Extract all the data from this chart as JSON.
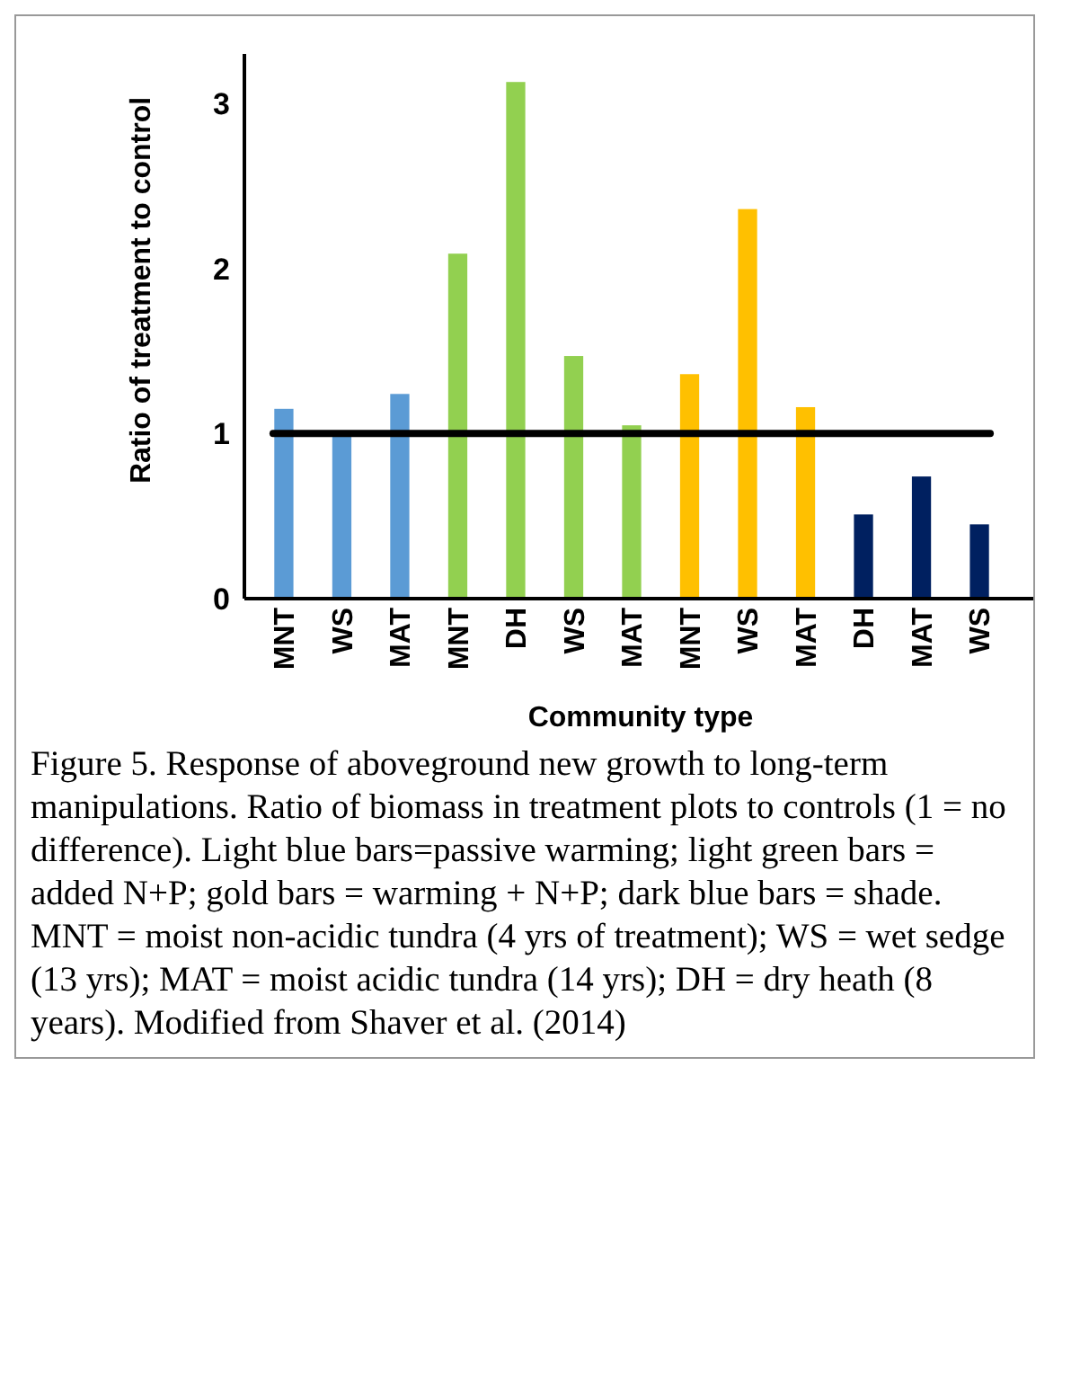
{
  "chart_data": {
    "type": "bar",
    "xlabel": "Community type",
    "ylabel": "Ratio of treatment to control",
    "categories": [
      "MNT",
      "WS",
      "MAT",
      "MNT",
      "DH",
      "WS",
      "MAT",
      "MNT",
      "WS",
      "MAT",
      "DH",
      "MAT",
      "WS"
    ],
    "values": [
      1.15,
      1.0,
      1.24,
      2.09,
      3.13,
      1.47,
      1.05,
      1.36,
      2.36,
      1.16,
      0.51,
      0.74,
      0.45
    ],
    "colors": [
      "#5b9bd5",
      "#5b9bd5",
      "#5b9bd5",
      "#92d050",
      "#92d050",
      "#92d050",
      "#92d050",
      "#ffc000",
      "#ffc000",
      "#ffc000",
      "#002060",
      "#002060",
      "#002060"
    ],
    "ylim": [
      0,
      3.3
    ],
    "yticks": [
      0,
      1,
      2,
      3
    ],
    "ref_lines": [
      {
        "axis": "y",
        "value": 1,
        "color": "#000000"
      }
    ],
    "annotations": [
      "Figure 5.  Response of aboveground new growth to long-term manipulations. Ratio of biomass in treatment plots to controls (1 = no difference). Light blue bars=passive warming; light green bars = added N+P; gold bars = warming + N+P; dark blue bars = shade. MNT = moist non-acidic tundra (4 yrs of treatment); WS = wet sedge (13 yrs); MAT = moist acidic tundra (14 yrs); DH = dry heath (8 years). Modified from Shaver et al. (2014)"
    ]
  }
}
